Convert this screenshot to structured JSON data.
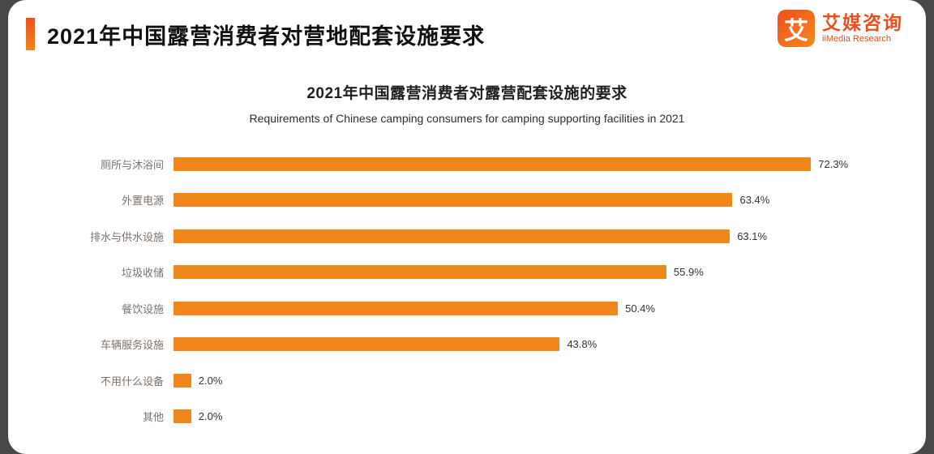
{
  "page": {
    "title": "2021年中国露营消费者对营地配套设施要求"
  },
  "logo": {
    "mark": "艾",
    "brand_cn": "艾媒咨询",
    "brand_en": "iiMedia Research"
  },
  "chart_data": {
    "type": "bar",
    "orientation": "horizontal",
    "title": "2021年中国露营消费者对露营配套设施的要求",
    "subtitle": "Requirements of Chinese camping consumers for camping supporting facilities in 2021",
    "categories": [
      "厕所与沐浴间",
      "外置电源",
      "排水与供水设施",
      "垃圾收储",
      "餐饮设施",
      "车辆服务设施",
      "不用什么设备",
      "其他"
    ],
    "values": [
      72.3,
      63.4,
      63.1,
      55.9,
      50.4,
      43.8,
      2.0,
      2.0
    ],
    "value_labels": [
      "72.3%",
      "63.4%",
      "63.1%",
      "55.9%",
      "50.4%",
      "43.8%",
      "2.0%",
      "2.0%"
    ],
    "xlim": [
      0,
      80
    ],
    "grid": false,
    "legend": "none",
    "bar_color": "#F1861C"
  },
  "colors": {
    "accent_bar": "#E9531D",
    "bar": "#F1861C",
    "logo": "#E8501E",
    "header_text": "#111111",
    "category_text": "#7D726B",
    "value_text": "#333333",
    "slide_bg": "#FFFFFF",
    "outer_bg": "#484848"
  }
}
